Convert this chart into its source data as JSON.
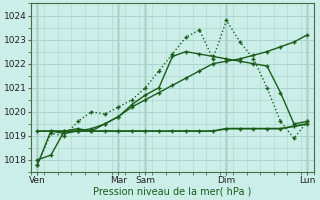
{
  "xlabel": "Pression niveau de la mer( hPa )",
  "bg_color": "#cceee8",
  "grid_color": "#aad4ce",
  "line_color": "#1a5c1a",
  "ylim": [
    1017.5,
    1024.5
  ],
  "yticks": [
    1018,
    1019,
    1020,
    1021,
    1022,
    1023,
    1024
  ],
  "day_labels": [
    "Ven",
    "",
    "Mar",
    "Sam",
    "",
    "Dim",
    "",
    "Lun"
  ],
  "xlim": [
    0,
    21
  ],
  "vlines": [
    0.5,
    6.5,
    8.5,
    14.5,
    20.5
  ],
  "tick_positions": [
    0.5,
    6.5,
    8.5,
    14.5,
    20.5
  ],
  "tick_labels": [
    "Ven",
    "Mar",
    "Sam",
    "Dim",
    "Lun"
  ],
  "s1_x": [
    0.5,
    1.5,
    2.5,
    3.5,
    4.5,
    5.5,
    6.5,
    7.5,
    8.5,
    9.5,
    10.5,
    11.5,
    12.5,
    13.5,
    14.5,
    15.5,
    16.5,
    17.5,
    18.5,
    19.5,
    20.5
  ],
  "s1_y": [
    1018.0,
    1018.2,
    1019.2,
    1019.3,
    1019.2,
    1019.5,
    1019.8,
    1020.2,
    1020.5,
    1020.8,
    1021.1,
    1021.4,
    1021.7,
    1022.0,
    1022.1,
    1022.2,
    1022.35,
    1022.5,
    1022.7,
    1022.9,
    1023.2
  ],
  "s2_x": [
    0.5,
    1.5,
    2.5,
    3.5,
    4.5,
    5.5,
    6.5,
    7.5,
    8.5,
    9.5,
    10.5,
    11.5,
    12.5,
    13.5,
    14.5,
    15.5,
    16.5,
    17.5,
    18.5,
    19.5,
    20.5
  ],
  "s2_y": [
    1017.8,
    1019.2,
    1019.1,
    1019.2,
    1019.3,
    1019.5,
    1019.8,
    1020.3,
    1020.7,
    1021.0,
    1022.3,
    1022.5,
    1022.4,
    1022.3,
    1022.2,
    1022.1,
    1022.0,
    1021.9,
    1020.8,
    1019.5,
    1019.6
  ],
  "s3_x": [
    0.5,
    1.5,
    2.5,
    3.5,
    4.5,
    5.5,
    6.5,
    7.5,
    8.5,
    9.5,
    10.5,
    11.5,
    12.5,
    13.5,
    14.5,
    15.5,
    16.5,
    17.5,
    18.5,
    19.5,
    20.5
  ],
  "s3_y": [
    1017.8,
    1019.1,
    1019.0,
    1019.6,
    1020.0,
    1019.9,
    1020.2,
    1020.5,
    1021.0,
    1021.7,
    1022.4,
    1023.1,
    1023.4,
    1022.2,
    1023.8,
    1022.9,
    1022.2,
    1021.0,
    1019.6,
    1018.9,
    1019.6
  ],
  "s4_x": [
    0.5,
    1.5,
    2.5,
    3.5,
    4.5,
    5.5,
    6.5,
    7.5,
    8.5,
    9.5,
    10.5,
    11.5,
    12.5,
    13.5,
    14.5,
    15.5,
    16.5,
    17.5,
    18.5,
    19.5,
    20.5
  ],
  "s4_y": [
    1019.2,
    1019.2,
    1019.2,
    1019.2,
    1019.2,
    1019.2,
    1019.2,
    1019.2,
    1019.2,
    1019.2,
    1019.2,
    1019.2,
    1019.2,
    1019.2,
    1019.3,
    1019.3,
    1019.3,
    1019.3,
    1019.3,
    1019.4,
    1019.5
  ]
}
